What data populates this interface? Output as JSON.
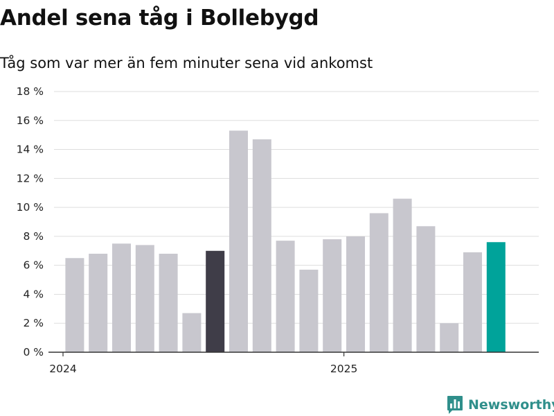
{
  "title": "Andel sena tåg i Bollebygd",
  "subtitle": "Tåg som var mer än fem minuter sena vid ankomst",
  "brand": {
    "name": "Newsworthy",
    "icon": "newsworthy-logo-icon",
    "color": "#2f8f8b"
  },
  "colors": {
    "default": "#c8c7ce",
    "highlight_dark": "#3f3d48",
    "highlight_current": "#00a39a",
    "grid": "#dddddd",
    "axis": "#333333"
  },
  "chart_data": {
    "type": "bar",
    "title": "Andel sena tåg i Bollebygd",
    "subtitle": "Tåg som var mer än fem minuter sena vid ankomst",
    "ylim": [
      0,
      18
    ],
    "yticks": [
      0,
      2,
      4,
      6,
      8,
      10,
      12,
      14,
      16,
      18
    ],
    "ytick_labels": [
      "0 %",
      "2 %",
      "4 %",
      "6 %",
      "8 %",
      "10 %",
      "12 %",
      "14 %",
      "16 %",
      "18 %"
    ],
    "grid": true,
    "x_tick_labels": [
      {
        "label": "2024",
        "index": 0
      },
      {
        "label": "2025",
        "index": 12
      }
    ],
    "bars": [
      {
        "value": 6.5,
        "style": "default"
      },
      {
        "value": 6.8,
        "style": "default"
      },
      {
        "value": 7.5,
        "style": "default"
      },
      {
        "value": 7.4,
        "style": "default"
      },
      {
        "value": 6.8,
        "style": "default"
      },
      {
        "value": 2.7,
        "style": "default"
      },
      {
        "value": 7.0,
        "style": "highlight_dark"
      },
      {
        "value": 15.3,
        "style": "default"
      },
      {
        "value": 14.7,
        "style": "default"
      },
      {
        "value": 7.7,
        "style": "default"
      },
      {
        "value": 5.7,
        "style": "default"
      },
      {
        "value": 7.8,
        "style": "default"
      },
      {
        "value": 8.0,
        "style": "default"
      },
      {
        "value": 9.6,
        "style": "default"
      },
      {
        "value": 10.6,
        "style": "default"
      },
      {
        "value": 8.7,
        "style": "default"
      },
      {
        "value": 2.0,
        "style": "default"
      },
      {
        "value": 6.9,
        "style": "default"
      },
      {
        "value": 7.6,
        "style": "highlight_current"
      }
    ]
  }
}
